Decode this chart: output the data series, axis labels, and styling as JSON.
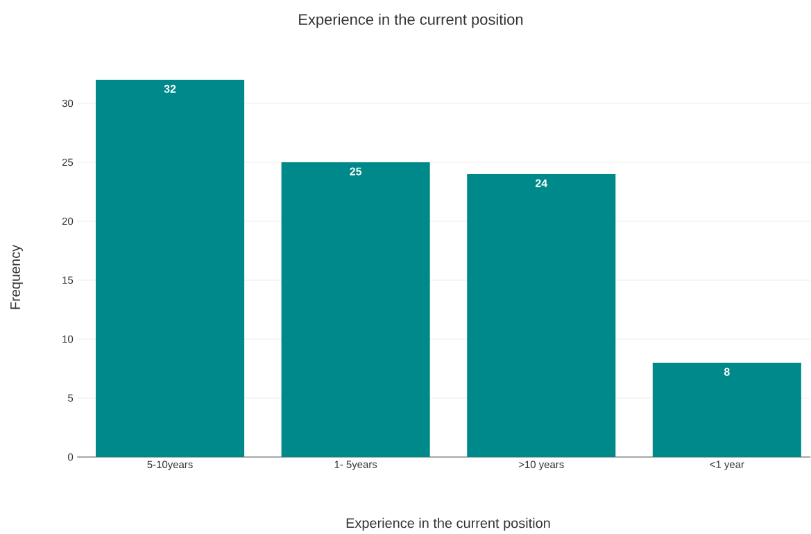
{
  "chart_data": {
    "type": "bar",
    "title": "Experience in the current position",
    "xlabel": "Experience in the current position",
    "ylabel": "Frequency",
    "categories": [
      "5-10years",
      "1- 5years",
      ">10 years",
      "<1 year"
    ],
    "values": [
      32,
      25,
      24,
      8
    ],
    "color": "#00898a",
    "ylim": [
      0,
      32
    ],
    "yticks": [
      0,
      5,
      10,
      15,
      20,
      25,
      30
    ],
    "grid": "y",
    "data_labels": true
  }
}
